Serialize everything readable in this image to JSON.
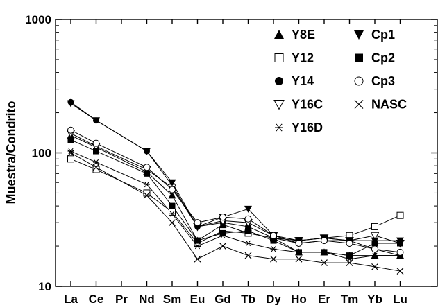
{
  "chart_data": {
    "type": "line",
    "title": "",
    "xlabel": "",
    "ylabel": "Muestra/Condrito",
    "yscale": "log",
    "ylim": [
      10,
      1000
    ],
    "yticks": [
      "10",
      "100",
      "1000"
    ],
    "categories": [
      "La",
      "Ce",
      "Pr",
      "Nd",
      "Sm",
      "Eu",
      "Gd",
      "Tb",
      "Dy",
      "Ho",
      "Er",
      "Tm",
      "Yb",
      "Lu"
    ],
    "legend_position": "top-right",
    "grid": false,
    "series": [
      {
        "name": "Y8E",
        "marker": "triangle-up-filled",
        "values": [
          135,
          110,
          null,
          72,
          48,
          22,
          29,
          25,
          23,
          18,
          18,
          17,
          17,
          17
        ]
      },
      {
        "name": "Y12",
        "marker": "square-open",
        "values": [
          90,
          75,
          null,
          50,
          36,
          21,
          26,
          25,
          23,
          22,
          23,
          24,
          28,
          34
        ]
      },
      {
        "name": "Y14",
        "marker": "circle-filled",
        "values": [
          240,
          175,
          null,
          103,
          57,
          28,
          30,
          28,
          23,
          21,
          22,
          22,
          19,
          17
        ]
      },
      {
        "name": "Y16C",
        "marker": "triangle-down-open",
        "values": [
          140,
          112,
          null,
          75,
          55,
          28,
          31,
          30,
          24,
          22,
          23,
          22,
          24,
          21
        ]
      },
      {
        "name": "Y16D",
        "marker": "asterisk",
        "values": [
          103,
          85,
          null,
          58,
          35,
          20,
          24,
          21,
          19,
          18,
          18,
          16,
          17,
          17
        ]
      },
      {
        "name": "Cp1",
        "marker": "triangle-down-filled",
        "values": [
          235,
          175,
          null,
          103,
          60,
          28,
          33,
          38,
          24,
          22,
          23,
          22,
          22,
          22
        ]
      },
      {
        "name": "Cp2",
        "marker": "square-filled",
        "values": [
          125,
          103,
          null,
          70,
          40,
          22,
          25,
          26,
          22,
          18,
          18,
          17,
          21,
          21
        ]
      },
      {
        "name": "Cp3",
        "marker": "circle-open",
        "values": [
          148,
          118,
          null,
          78,
          53,
          30,
          33,
          32,
          24,
          21,
          22,
          21,
          19,
          18
        ]
      },
      {
        "name": "NASC",
        "marker": "cross",
        "values": [
          100,
          78,
          null,
          48,
          30,
          16,
          20,
          17,
          16,
          16,
          15,
          15,
          14,
          13
        ]
      }
    ]
  }
}
